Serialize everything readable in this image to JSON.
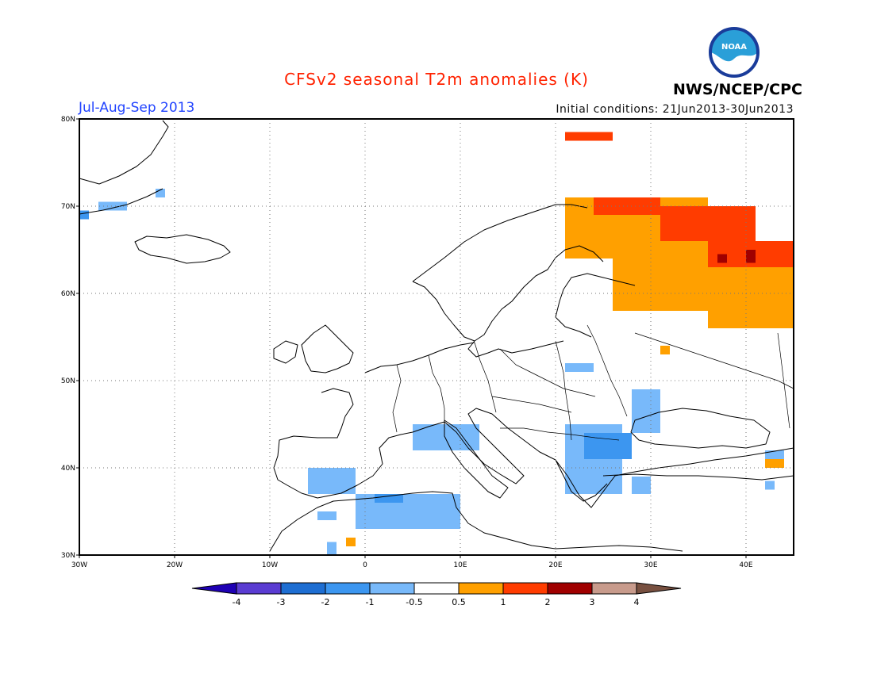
{
  "header": {
    "title": "CFSv2 seasonal T2m anomalies (K)",
    "period": "Jul-Aug-Sep 2013",
    "initial_conditions": "Initial conditions: 21Jun2013-30Jun2013",
    "agency": "NWS/NCEP/CPC",
    "logo_text": "NOAA"
  },
  "map": {
    "lon_range": [
      -30,
      45
    ],
    "lat_range": [
      30,
      80
    ],
    "lon_ticks": [
      {
        "value": -30,
        "label": "30W"
      },
      {
        "value": -20,
        "label": "20W"
      },
      {
        "value": -10,
        "label": "10W"
      },
      {
        "value": 0,
        "label": "0"
      },
      {
        "value": 10,
        "label": "10E"
      },
      {
        "value": 20,
        "label": "20E"
      },
      {
        "value": 30,
        "label": "30E"
      },
      {
        "value": 40,
        "label": "40E"
      }
    ],
    "lat_ticks": [
      {
        "value": 30,
        "label": "30N"
      },
      {
        "value": 40,
        "label": "40N"
      },
      {
        "value": 50,
        "label": "50N"
      },
      {
        "value": 60,
        "label": "60N"
      },
      {
        "value": 70,
        "label": "70N"
      },
      {
        "value": 80,
        "label": "80N"
      }
    ],
    "grid": "dotted",
    "anomaly_cells": [
      {
        "lon": [
          21,
          26
        ],
        "lat": [
          77.5,
          78.5
        ],
        "class": "1-2"
      },
      {
        "lon": [
          21,
          36
        ],
        "lat": [
          64,
          71
        ],
        "class": "0.5-1"
      },
      {
        "lon": [
          36,
          45
        ],
        "lat": [
          56,
          65
        ],
        "class": "0.5-1"
      },
      {
        "lon": [
          26,
          36
        ],
        "lat": [
          58,
          64
        ],
        "class": "0.5-1"
      },
      {
        "lon": [
          24,
          31
        ],
        "lat": [
          69,
          71
        ],
        "class": "1-2"
      },
      {
        "lon": [
          31,
          41
        ],
        "lat": [
          66,
          70
        ],
        "class": "1-2"
      },
      {
        "lon": [
          36,
          45
        ],
        "lat": [
          63,
          66
        ],
        "class": "1-2"
      },
      {
        "lon": [
          37,
          38
        ],
        "lat": [
          63.5,
          64.5
        ],
        "class": "2-3"
      },
      {
        "lon": [
          40,
          41
        ],
        "lat": [
          63.5,
          65
        ],
        "class": "2-3"
      },
      {
        "lon": [
          31,
          32
        ],
        "lat": [
          53,
          54
        ],
        "class": "0.5-1"
      },
      {
        "lon": [
          42,
          44
        ],
        "lat": [
          40,
          41.5
        ],
        "class": "0.5-1"
      },
      {
        "lon": [
          -2,
          -1
        ],
        "lat": [
          31,
          32
        ],
        "class": "0.5-1"
      },
      {
        "lon": [
          -30,
          -29
        ],
        "lat": [
          68.5,
          69.5
        ],
        "class": "-2--1"
      },
      {
        "lon": [
          -28,
          -25
        ],
        "lat": [
          69.5,
          70.5
        ],
        "class": "-1--0.5"
      },
      {
        "lon": [
          -22,
          -21
        ],
        "lat": [
          71,
          72
        ],
        "class": "-1--0.5"
      },
      {
        "lon": [
          -6,
          -1
        ],
        "lat": [
          37,
          40
        ],
        "class": "-1--0.5"
      },
      {
        "lon": [
          -5,
          -3
        ],
        "lat": [
          34,
          35
        ],
        "class": "-1--0.5"
      },
      {
        "lon": [
          -1,
          10
        ],
        "lat": [
          33,
          37
        ],
        "class": "-1--0.5"
      },
      {
        "lon": [
          1,
          4
        ],
        "lat": [
          36,
          37
        ],
        "class": "-2--1"
      },
      {
        "lon": [
          5,
          12
        ],
        "lat": [
          42,
          45
        ],
        "class": "-1--0.5"
      },
      {
        "lon": [
          21,
          27
        ],
        "lat": [
          37,
          45
        ],
        "class": "-1--0.5"
      },
      {
        "lon": [
          23,
          28
        ],
        "lat": [
          41,
          44
        ],
        "class": "-2--1"
      },
      {
        "lon": [
          28,
          31
        ],
        "lat": [
          44,
          49
        ],
        "class": "-1--0.5"
      },
      {
        "lon": [
          21,
          24
        ],
        "lat": [
          51,
          52
        ],
        "class": "-1--0.5"
      },
      {
        "lon": [
          28,
          30
        ],
        "lat": [
          37,
          39
        ],
        "class": "-1--0.5"
      },
      {
        "lon": [
          -4,
          -3
        ],
        "lat": [
          30,
          31.5
        ],
        "class": "-1--0.5"
      },
      {
        "lon": [
          42,
          44
        ],
        "lat": [
          41,
          42
        ],
        "class": "-1--0.5"
      },
      {
        "lon": [
          42,
          43
        ],
        "lat": [
          37.5,
          38.5
        ],
        "class": "-1--0.5"
      }
    ]
  },
  "colorbar": {
    "boundaries": [
      "-4",
      "-3",
      "-2",
      "-1",
      "-0.5",
      "0.5",
      "1",
      "2",
      "3",
      "4"
    ],
    "colors": [
      "#1e00b4",
      "#5a3cd2",
      "#1e6ed2",
      "#3c96f0",
      "#78b9fa",
      "#ffffff",
      "#ffa000",
      "#ff3c00",
      "#a00000",
      "#c89b8c",
      "#785040"
    ]
  }
}
